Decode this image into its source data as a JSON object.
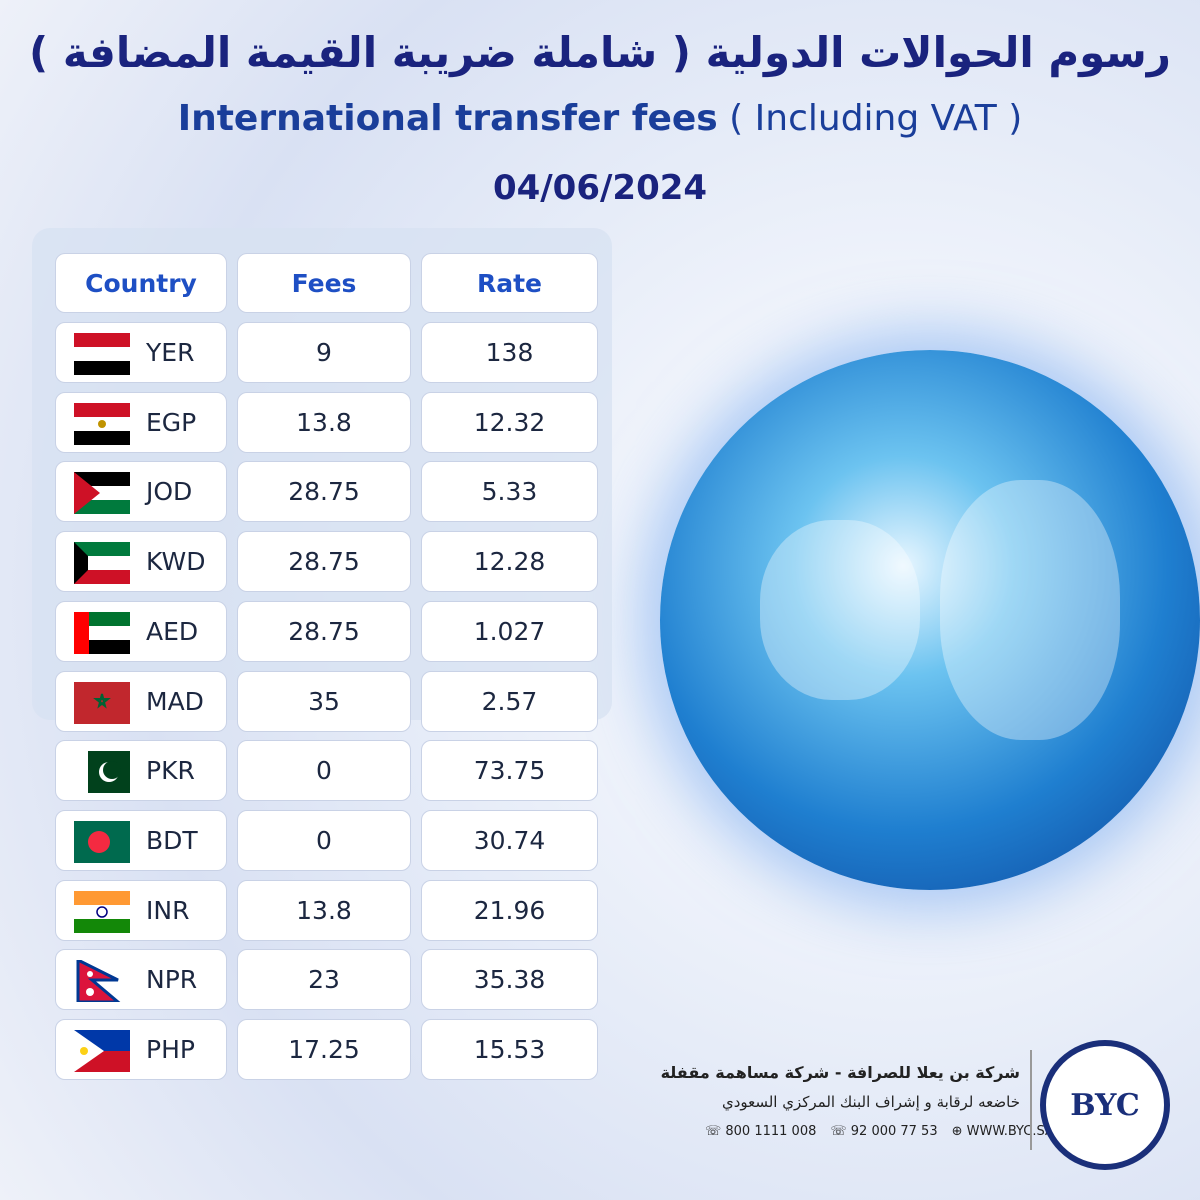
{
  "header": {
    "title_ar": "رسوم الحوالات الدولية ( شاملة ضريبة القيمة المضافة )",
    "title_en": "International transfer fees",
    "title_en_note": "( Including VAT )",
    "date": "04/06/2024"
  },
  "table": {
    "headers": [
      "Country",
      "Fees",
      "Rate"
    ],
    "rows": [
      [
        "YER",
        "9",
        "138"
      ],
      [
        "EGP",
        "13.8",
        "12.32"
      ],
      [
        "JOD",
        "28.75",
        "5.33"
      ],
      [
        "KWD",
        "28.75",
        "12.28"
      ],
      [
        "AED",
        "28.75",
        "1.027"
      ],
      [
        "MAD",
        "35",
        "2.57"
      ],
      [
        "PKR",
        "0",
        "73.75"
      ],
      [
        "BDT",
        "0",
        "30.74"
      ],
      [
        "INR",
        "13.8",
        "21.96"
      ],
      [
        "NPR",
        "23",
        "35.38"
      ],
      [
        "PHP",
        "17.25",
        "15.53"
      ]
    ]
  },
  "footer": {
    "company": "شركة بن يعلا للصرافة - شركة مساهمة مقفلة",
    "regulator": "خاضعه لرقابة و إشراف البنك المركزي السعودي",
    "phone1": "800 1111 008",
    "phone2": "92 000 77 53",
    "website": "WWW.BYC.SA",
    "logo": "BYC"
  }
}
